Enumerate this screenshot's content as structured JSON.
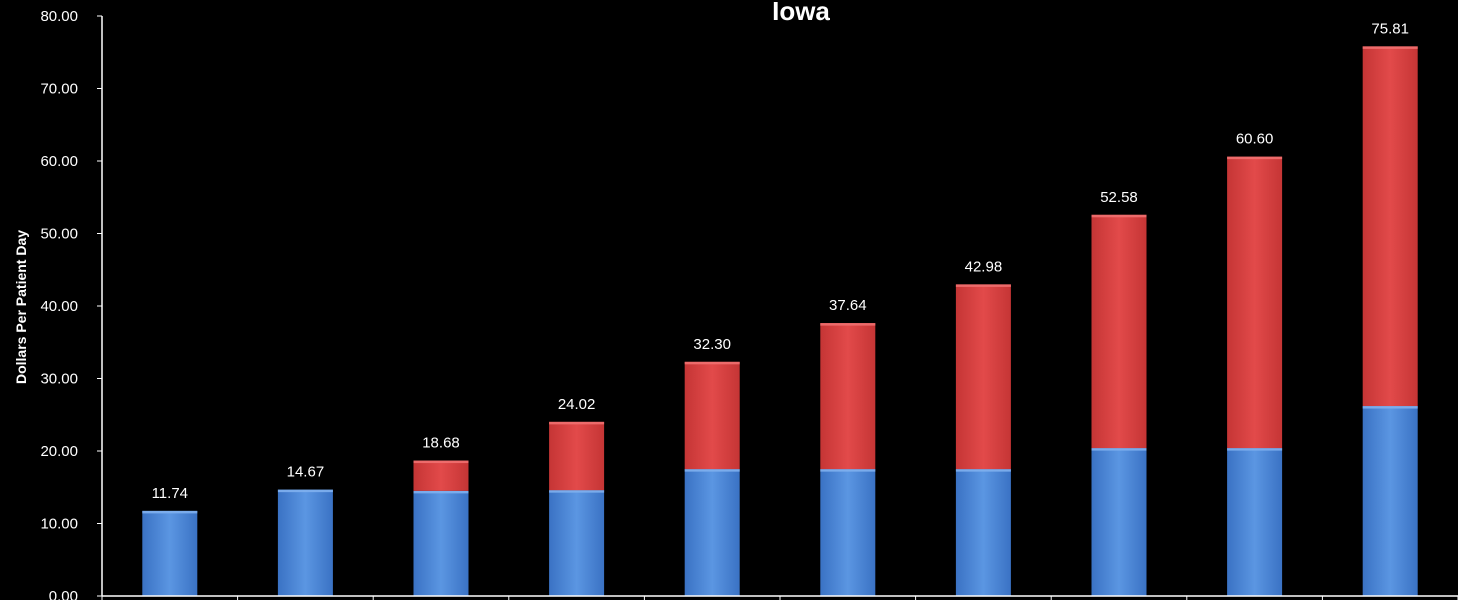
{
  "colors": {
    "background": "#000000",
    "base_series": "#4a86d6",
    "top_series": "#d94343",
    "axis": "#ffffff",
    "text": "#ffffff"
  },
  "chart_data": {
    "type": "bar",
    "stacked": true,
    "title": "Iowa",
    "ylabel": "Dollars Per Patient Day",
    "xlabel": "",
    "ylim": [
      0,
      80
    ],
    "y_ticks": [
      "0.00",
      "10.00",
      "20.00",
      "30.00",
      "40.00",
      "50.00",
      "60.00",
      "70.00",
      "80.00"
    ],
    "grid": false,
    "legend": "none",
    "series": [
      {
        "values": [
          11.74,
          14.67,
          14.5,
          14.6,
          17.5,
          17.5,
          17.5,
          20.4,
          20.4,
          26.2
        ]
      },
      {
        "values": [
          0,
          0,
          4.18,
          9.42,
          14.8,
          20.14,
          25.48,
          32.18,
          40.2,
          49.61
        ]
      }
    ],
    "totals": [
      "11.74",
      "14.67",
      "18.68",
      "24.02",
      "32.30",
      "37.64",
      "42.98",
      "52.58",
      "60.60",
      "75.81"
    ]
  }
}
